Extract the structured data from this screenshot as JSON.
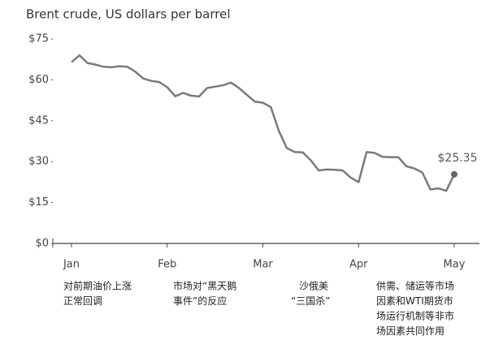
{
  "chart_data": {
    "type": "line",
    "title": "Brent crude, US dollars per barrel",
    "categories": [
      "Jan",
      null,
      null,
      null,
      null,
      null,
      null,
      null,
      null,
      null,
      null,
      null,
      "Feb",
      null,
      null,
      null,
      null,
      null,
      null,
      null,
      null,
      null,
      null,
      null,
      "Mar",
      null,
      null,
      null,
      null,
      null,
      null,
      null,
      null,
      null,
      null,
      null,
      "Apr",
      null,
      null,
      null,
      null,
      null,
      null,
      null,
      null,
      null,
      null,
      null,
      "May"
    ],
    "values": [
      66.5,
      69,
      66.2,
      65.6,
      64.8,
      64.6,
      65,
      64.8,
      63,
      60.5,
      59.6,
      59.2,
      57.3,
      54,
      55.2,
      54.2,
      53.9,
      57,
      57.5,
      58,
      59,
      57,
      54.5,
      52,
      51.6,
      50,
      41.3,
      35,
      33.5,
      33.4,
      30.5,
      26.8,
      27.1,
      27,
      26.8,
      24.2,
      22.5,
      33.5,
      33.2,
      31.8,
      31.6,
      31.6,
      28.3,
      27.5,
      26,
      19.8,
      20.2,
      19.3,
      25.35
    ],
    "value_labels": [
      null,
      null,
      null,
      null,
      null,
      null,
      null,
      null,
      null,
      null,
      null,
      null,
      null,
      null,
      null,
      null,
      null,
      null,
      null,
      null,
      null,
      null,
      null,
      null,
      null,
      null,
      null,
      null,
      null,
      null,
      null,
      null,
      null,
      null,
      null,
      null,
      null,
      null,
      null,
      null,
      null,
      null,
      null,
      null,
      null,
      null,
      null,
      null,
      "$25.35"
    ],
    "color": "#7a7a7a",
    "ylim": [
      0,
      75
    ],
    "yticks": [
      {
        "value": 0,
        "label": "$0"
      },
      {
        "value": 15,
        "label": "$15"
      },
      {
        "value": 30,
        "label": "$30"
      },
      {
        "value": 45,
        "label": "$45"
      },
      {
        "value": 60,
        "label": "$60"
      },
      {
        "value": 75,
        "label": "$75"
      }
    ],
    "grid": false,
    "annotations": [
      [
        "对前期油价上涨",
        "正常回调"
      ],
      [
        "市场对“黑天鹅",
        "事件”的反应"
      ],
      [
        "沙俄美",
        "“三国杀”"
      ],
      [
        "供需、储运等市场",
        "因素和WTI期货市",
        "场运行机制等非市",
        "场因素共同作用"
      ]
    ]
  }
}
